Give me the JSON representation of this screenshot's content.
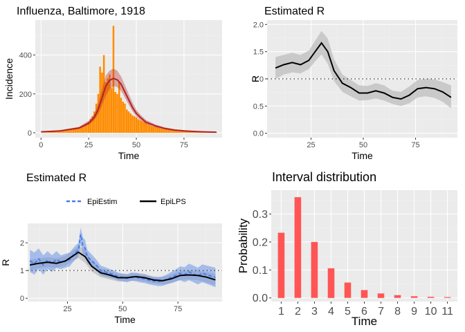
{
  "chart_data": [
    {
      "id": "incidence",
      "type": "bar",
      "title": "Influenza, Baltimore, 1918",
      "xlabel": "Time",
      "ylabel": "Incidence",
      "xlim": [
        -3,
        95
      ],
      "ylim": [
        -25,
        580
      ],
      "xticks": [
        0,
        25,
        50,
        75
      ],
      "yticks": [
        0,
        200,
        400
      ],
      "grid": true,
      "colors": {
        "bars": "#FF8C00",
        "bars_estimate": "#E07A10",
        "band": "#B22222",
        "line": "#B22222"
      },
      "x": [
        1,
        2,
        3,
        4,
        5,
        6,
        7,
        8,
        9,
        10,
        11,
        12,
        13,
        14,
        15,
        16,
        17,
        18,
        19,
        20,
        21,
        22,
        23,
        24,
        25,
        26,
        27,
        28,
        29,
        30,
        31,
        32,
        33,
        34,
        35,
        36,
        37,
        38,
        39,
        40,
        41,
        42,
        43,
        44,
        45,
        46,
        47,
        48,
        49,
        50,
        51,
        52,
        53,
        54,
        55,
        56,
        57,
        58,
        59,
        60,
        61,
        62,
        63,
        64,
        65,
        66,
        67,
        68,
        69,
        70,
        71,
        72,
        73,
        74,
        75,
        76,
        77,
        78,
        79,
        80,
        81,
        82,
        83,
        84,
        85,
        86,
        87,
        88,
        89,
        90,
        91,
        92
      ],
      "values": [
        1,
        2,
        3,
        3,
        5,
        6,
        7,
        8,
        8,
        10,
        12,
        10,
        14,
        16,
        15,
        18,
        20,
        22,
        24,
        26,
        30,
        34,
        40,
        45,
        55,
        70,
        85,
        110,
        150,
        200,
        340,
        310,
        400,
        260,
        280,
        300,
        230,
        550,
        210,
        200,
        260,
        180,
        160,
        150,
        120,
        110,
        100,
        90,
        85,
        80,
        70,
        65,
        60,
        55,
        50,
        45,
        40,
        35,
        32,
        30,
        28,
        25,
        22,
        20,
        18,
        16,
        15,
        14,
        13,
        12,
        11,
        10,
        10,
        9,
        8,
        8,
        7,
        7,
        6,
        6,
        5,
        5,
        5,
        4,
        4,
        3,
        3,
        3,
        2,
        2,
        2,
        2
      ],
      "fit_x": [
        0,
        10,
        20,
        25,
        28,
        30,
        32,
        34,
        36,
        38,
        40,
        42,
        44,
        46,
        48,
        50,
        52,
        55,
        60,
        65,
        70,
        75,
        80,
        85,
        92
      ],
      "fit_y": [
        5,
        10,
        25,
        50,
        80,
        120,
        180,
        240,
        270,
        280,
        272,
        250,
        210,
        170,
        130,
        100,
        80,
        55,
        35,
        22,
        14,
        10,
        7,
        5,
        3
      ],
      "fit_band_lo": [
        3,
        8,
        20,
        40,
        65,
        95,
        140,
        190,
        225,
        240,
        235,
        215,
        180,
        145,
        110,
        85,
        66,
        45,
        28,
        17,
        10,
        7,
        5,
        3,
        2
      ],
      "fit_band_hi": [
        7,
        13,
        31,
        62,
        98,
        150,
        225,
        295,
        320,
        330,
        320,
        290,
        245,
        200,
        155,
        118,
        95,
        66,
        43,
        28,
        18,
        13,
        9,
        7,
        5
      ]
    },
    {
      "id": "r-lps",
      "type": "line",
      "title": "Estimated R",
      "xlabel": "Time",
      "ylabel": "R",
      "xlim": [
        4,
        95
      ],
      "ylim": [
        -0.08,
        2.08
      ],
      "xticks": [
        25,
        50,
        75
      ],
      "yticks": [
        0.0,
        0.5,
        1.0,
        1.5,
        2.0
      ],
      "ytick_labels": [
        "0.0",
        "0.5",
        "1.0",
        "1.5",
        "2.0"
      ],
      "reference_line": 1.0,
      "grid": true,
      "colors": {
        "line": "#000000",
        "band": "#BEBEBE",
        "ref": "#333333"
      },
      "x": [
        8,
        12,
        16,
        20,
        24,
        27,
        30,
        33,
        36,
        40,
        44,
        48,
        52,
        56,
        60,
        64,
        68,
        72,
        76,
        80,
        84,
        88,
        92
      ],
      "y": [
        1.2,
        1.26,
        1.3,
        1.26,
        1.34,
        1.5,
        1.66,
        1.5,
        1.15,
        0.92,
        0.84,
        0.74,
        0.74,
        0.78,
        0.74,
        0.66,
        0.63,
        0.7,
        0.82,
        0.84,
        0.82,
        0.76,
        0.66
      ],
      "lo": [
        1.0,
        1.08,
        1.12,
        1.1,
        1.18,
        1.32,
        1.45,
        1.28,
        0.96,
        0.76,
        0.68,
        0.6,
        0.61,
        0.64,
        0.6,
        0.54,
        0.5,
        0.55,
        0.66,
        0.68,
        0.65,
        0.58,
        0.46
      ],
      "hi": [
        1.4,
        1.44,
        1.48,
        1.44,
        1.52,
        1.7,
        1.88,
        1.74,
        1.36,
        1.08,
        0.98,
        0.88,
        0.87,
        0.92,
        0.88,
        0.78,
        0.76,
        0.86,
        0.98,
        1.0,
        0.99,
        0.94,
        0.88
      ]
    },
    {
      "id": "r-compare",
      "type": "line",
      "title": "Estimated R",
      "xlabel": "Time",
      "ylabel": "R",
      "xlim": [
        7,
        95
      ],
      "ylim": [
        -0.12,
        2.7
      ],
      "xticks": [
        25,
        50,
        75
      ],
      "yticks": [
        0,
        1,
        2
      ],
      "ytick_labels": [
        "0",
        "1",
        "2"
      ],
      "reference_line": 1.0,
      "grid": true,
      "legend": {
        "position": "top",
        "entries": [
          "EpiEstim",
          "EpiLPS"
        ]
      },
      "colors": {
        "epiestim_line": "#4D7CE3",
        "epiestim_band": "#6C95E8",
        "epilps_line": "#000000",
        "epilps_band": "#BEBEBE",
        "ref": "#333333"
      },
      "series": [
        {
          "name": "EpiEstim",
          "x": [
            8,
            10,
            12,
            14,
            16,
            18,
            20,
            22,
            24,
            26,
            28,
            30,
            31,
            32,
            33,
            34,
            36,
            38,
            40,
            42,
            44,
            46,
            48,
            50,
            52,
            54,
            56,
            58,
            60,
            62,
            64,
            66,
            68,
            70,
            72,
            74,
            76,
            78,
            80,
            82,
            84,
            86,
            88,
            90,
            92
          ],
          "y": [
            1.35,
            1.25,
            1.42,
            1.2,
            1.38,
            1.25,
            1.4,
            1.3,
            1.35,
            1.4,
            1.6,
            1.75,
            2.3,
            1.9,
            1.8,
            1.5,
            1.35,
            1.2,
            1.0,
            0.95,
            0.9,
            0.85,
            0.78,
            0.75,
            0.72,
            0.78,
            0.76,
            0.72,
            0.7,
            0.65,
            0.62,
            0.6,
            0.62,
            0.68,
            0.75,
            0.82,
            0.9,
            0.85,
            0.95,
            0.88,
            0.8,
            0.9,
            0.85,
            0.8,
            0.75
          ],
          "lo": [
            0.95,
            0.85,
            1.05,
            0.85,
            1.05,
            0.95,
            1.1,
            1.05,
            1.1,
            1.15,
            1.35,
            1.5,
            1.95,
            1.6,
            1.5,
            1.25,
            1.12,
            1.0,
            0.82,
            0.78,
            0.74,
            0.7,
            0.64,
            0.61,
            0.58,
            0.63,
            0.61,
            0.57,
            0.55,
            0.5,
            0.47,
            0.44,
            0.45,
            0.5,
            0.55,
            0.6,
            0.65,
            0.58,
            0.65,
            0.58,
            0.5,
            0.58,
            0.52,
            0.46,
            0.4
          ],
          "hi": [
            1.75,
            1.65,
            1.8,
            1.55,
            1.7,
            1.55,
            1.7,
            1.55,
            1.6,
            1.65,
            1.85,
            2.0,
            2.55,
            2.2,
            2.1,
            1.75,
            1.58,
            1.4,
            1.18,
            1.12,
            1.06,
            1.0,
            0.92,
            0.89,
            0.86,
            0.93,
            0.91,
            0.87,
            0.85,
            0.8,
            0.77,
            0.76,
            0.79,
            0.86,
            0.95,
            1.04,
            1.15,
            1.12,
            1.25,
            1.18,
            1.1,
            1.22,
            1.18,
            1.14,
            1.1
          ]
        },
        {
          "name": "EpiLPS",
          "x": [
            8,
            12,
            16,
            20,
            24,
            27,
            30,
            33,
            36,
            40,
            44,
            48,
            52,
            56,
            60,
            64,
            68,
            72,
            76,
            80,
            84,
            88,
            92
          ],
          "y": [
            1.2,
            1.26,
            1.3,
            1.26,
            1.34,
            1.5,
            1.66,
            1.5,
            1.15,
            0.92,
            0.84,
            0.74,
            0.74,
            0.78,
            0.74,
            0.66,
            0.63,
            0.7,
            0.82,
            0.84,
            0.82,
            0.76,
            0.66
          ],
          "lo": [
            1.0,
            1.08,
            1.12,
            1.1,
            1.18,
            1.32,
            1.45,
            1.28,
            0.96,
            0.76,
            0.68,
            0.6,
            0.61,
            0.64,
            0.6,
            0.54,
            0.5,
            0.55,
            0.66,
            0.68,
            0.65,
            0.58,
            0.46
          ],
          "hi": [
            1.4,
            1.44,
            1.48,
            1.44,
            1.52,
            1.7,
            1.88,
            1.74,
            1.36,
            1.08,
            0.98,
            0.88,
            0.87,
            0.92,
            0.88,
            0.78,
            0.76,
            0.86,
            0.98,
            1.0,
            0.99,
            0.94,
            0.88
          ]
        }
      ]
    },
    {
      "id": "interval",
      "type": "bar",
      "title": "Interval distribution",
      "xlabel": "Time",
      "ylabel": "Probability",
      "ylim": [
        -0.013,
        0.385
      ],
      "yticks": [
        0.0,
        0.1,
        0.2,
        0.3
      ],
      "ytick_labels": [
        "0.0",
        "0.1",
        "0.2",
        "0.3"
      ],
      "grid": true,
      "colors": {
        "bars": "#FF5555"
      },
      "categories": [
        "1",
        "2",
        "3",
        "4",
        "5",
        "6",
        "7",
        "8",
        "9",
        "10",
        "11"
      ],
      "values": [
        0.233,
        0.36,
        0.2,
        0.106,
        0.055,
        0.028,
        0.016,
        0.01,
        0.006,
        0.004,
        0.003
      ]
    }
  ]
}
